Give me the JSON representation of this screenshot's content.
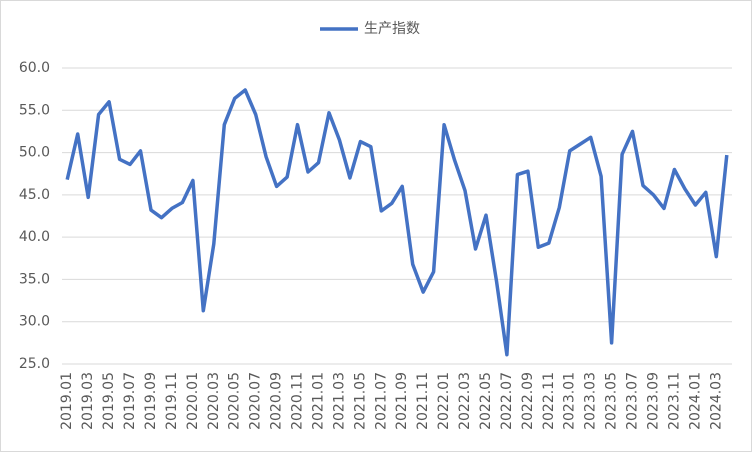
{
  "chart_data": {
    "type": "line",
    "categories": [
      "2019.01",
      null,
      "2019.03",
      null,
      "2019.05",
      null,
      "2019.07",
      null,
      "2019.09",
      null,
      "2019.11",
      null,
      "2020.01",
      null,
      "2020.03",
      null,
      "2020.05",
      null,
      "2020.07",
      null,
      "2020.09",
      null,
      "2020.11",
      null,
      "2021.01",
      null,
      "2021.03",
      null,
      "2021.05",
      null,
      "2021.07",
      null,
      "2021.09",
      null,
      "2021.11",
      null,
      "2022.01",
      null,
      "2022.03",
      null,
      "2022.05",
      null,
      "2022.07",
      null,
      "2022.09",
      null,
      "2022.11",
      null,
      "2023.01",
      null,
      "2023.03",
      null,
      "2023.05",
      null,
      "2023.07",
      null,
      "2023.09",
      null,
      "2023.11",
      null,
      "2024.01",
      null,
      "2024.03",
      null
    ],
    "series": [
      {
        "name": "生产指数",
        "color": "#4472c4",
        "values": [
          46.8,
          52.2,
          44.7,
          54.5,
          56.0,
          49.2,
          48.6,
          50.2,
          43.2,
          42.3,
          43.4,
          44.1,
          46.7,
          31.3,
          39.2,
          53.3,
          56.4,
          57.4,
          54.5,
          49.5,
          46.0,
          47.1,
          53.3,
          47.7,
          48.8,
          54.7,
          51.5,
          47.0,
          51.3,
          50.7,
          43.1,
          44.0,
          46.0,
          36.8,
          33.5,
          35.9,
          53.3,
          49.1,
          45.5,
          38.6,
          42.6,
          34.8,
          26.1,
          47.4,
          47.8,
          38.8,
          39.3,
          43.5,
          50.2,
          51.0,
          51.8,
          47.2,
          27.5,
          49.8,
          52.5,
          46.1,
          45.0,
          43.4,
          48.0,
          45.7,
          43.8,
          45.3,
          37.7,
          49.7
        ]
      }
    ],
    "ylim": [
      25,
      60
    ],
    "yticks": [
      {
        "value": 25,
        "label": "25.0"
      },
      {
        "value": 30,
        "label": "30.0"
      },
      {
        "value": 35,
        "label": "35.0"
      },
      {
        "value": 40,
        "label": "40.0"
      },
      {
        "value": 45,
        "label": "45.0"
      },
      {
        "value": 50,
        "label": "50.0"
      },
      {
        "value": 55,
        "label": "55.0"
      },
      {
        "value": 60,
        "label": "60.0"
      }
    ],
    "grid": true,
    "legend": "top"
  }
}
